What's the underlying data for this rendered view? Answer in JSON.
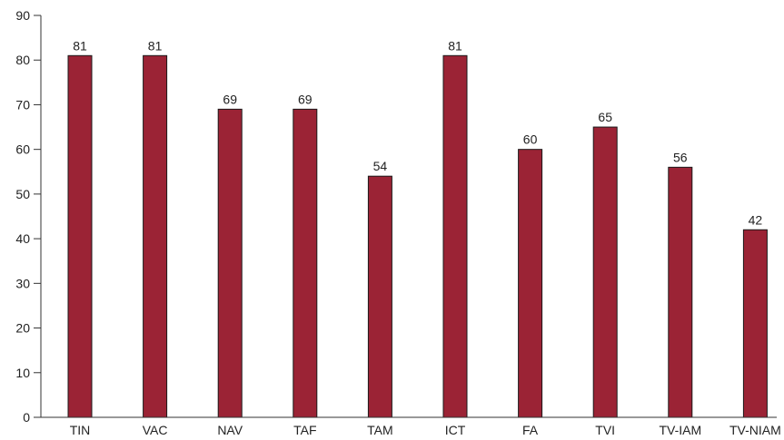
{
  "chart_data": {
    "type": "bar",
    "title": "",
    "xlabel": "",
    "ylabel": "",
    "categories": [
      "TIN",
      "VAC",
      "NAV",
      "TAF",
      "TAM",
      "ICT",
      "FA",
      "TVI",
      "TV-IAM",
      "TV-NIAM"
    ],
    "values": [
      81,
      81,
      69,
      69,
      54,
      81,
      60,
      65,
      56,
      42
    ],
    "ylim": [
      0,
      90
    ],
    "yticks": [
      0,
      10,
      20,
      30,
      40,
      50,
      60,
      70,
      80,
      90
    ],
    "grid": false,
    "legend": "none",
    "bar_color": "#9b2335",
    "bar_stroke": "#1a1a1a",
    "axis_color": "#333333"
  }
}
